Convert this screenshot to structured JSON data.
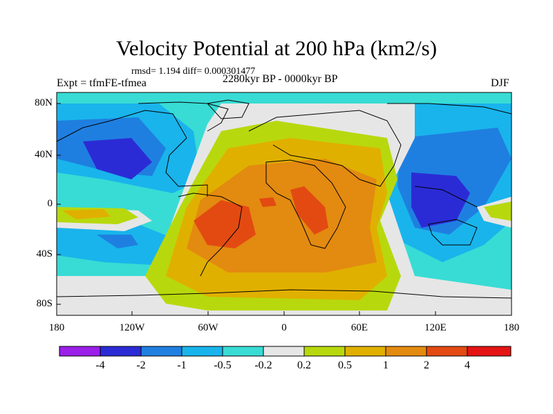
{
  "title": "Velocity Potential at 200 hPa (km2/s)",
  "stats": "rmsd= 1.194 diff= 0.000301477",
  "experiment": "Expt = tfmFE-tfmea",
  "period": "2280kyr BP - 0000kyr BP",
  "season": "DJF",
  "map": {
    "lat_ticks": [
      "80N",
      "40N",
      "0",
      "40S",
      "80S"
    ],
    "lon_ticks": [
      "180",
      "120W",
      "60W",
      "0",
      "60E",
      "120E",
      "180"
    ]
  },
  "colorbar": {
    "labels": [
      "-4",
      "-2",
      "-1",
      "-0.5",
      "-0.2",
      "0.2",
      "0.5",
      "1",
      "2",
      "4"
    ],
    "colors": [
      "#9b1fe8",
      "#2b2bd6",
      "#1f7fe0",
      "#19b4ec",
      "#38dcd4",
      "#e6e6e6",
      "#b8d80e",
      "#e0b000",
      "#e38a10",
      "#e24a12",
      "#e51414"
    ]
  }
}
